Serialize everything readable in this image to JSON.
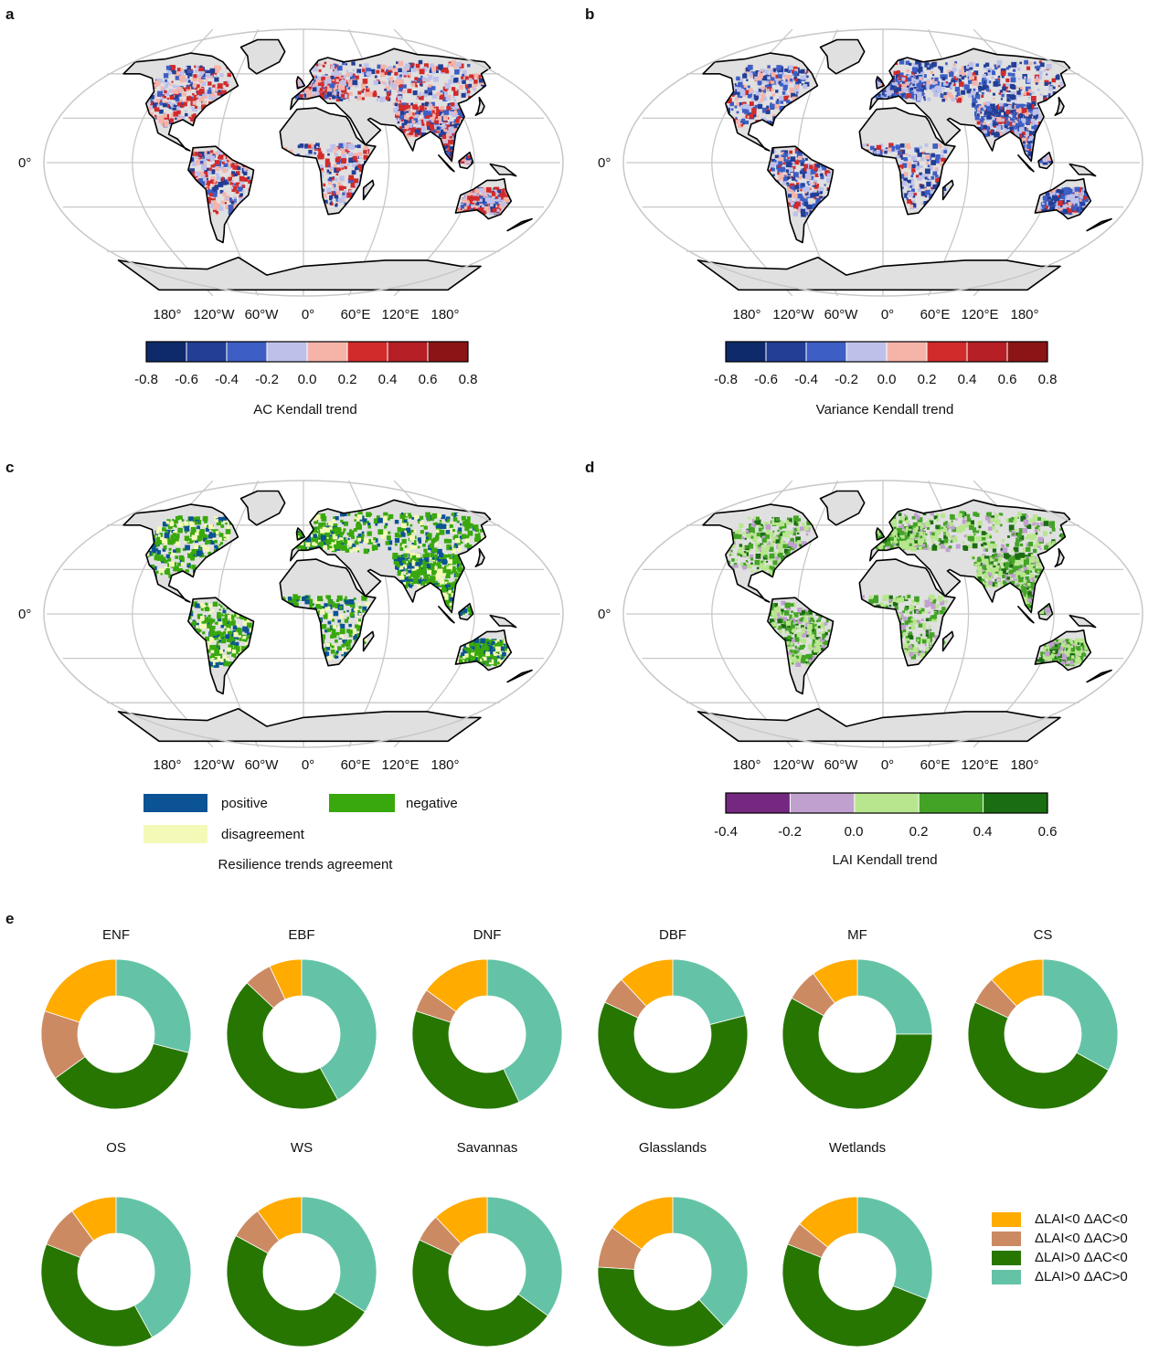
{
  "panels": {
    "a": {
      "letter": "a",
      "equator": "0°",
      "lon_labels": [
        "180°",
        "120°W",
        "60°W",
        "0°",
        "60°E",
        "120°E",
        "180°"
      ],
      "colorbar": {
        "ticks": [
          "-0.8",
          "-0.6",
          "-0.4",
          "-0.2",
          "0.0",
          "0.2",
          "0.4",
          "0.6",
          "0.8"
        ],
        "colors": [
          "#0e2a6b",
          "#223e95",
          "#3d5ec4",
          "#bdc1ea",
          "#f6b4a9",
          "#d12b2b",
          "#b51f25",
          "#8b1416"
        ],
        "title": "AC Kendall trend"
      }
    },
    "b": {
      "letter": "b",
      "equator": "0°",
      "lon_labels": [
        "180°",
        "120°W",
        "60°W",
        "0°",
        "60°E",
        "120°E",
        "180°"
      ],
      "colorbar": {
        "ticks": [
          "-0.8",
          "-0.6",
          "-0.4",
          "-0.2",
          "0.0",
          "0.2",
          "0.4",
          "0.6",
          "0.8"
        ],
        "colors": [
          "#0e2a6b",
          "#223e95",
          "#3d5ec4",
          "#bdc1ea",
          "#f6b4a9",
          "#d12b2b",
          "#b51f25",
          "#8b1416"
        ],
        "title": "Variance Kendall trend"
      }
    },
    "c": {
      "letter": "c",
      "equator": "0°",
      "lon_labels": [
        "180°",
        "120°W",
        "60°W",
        "0°",
        "60°E",
        "120°E",
        "180°"
      ],
      "legend": {
        "positive": {
          "label": "positive",
          "color": "#0b5394"
        },
        "negative": {
          "label": "negative",
          "color": "#38a80c"
        },
        "disagreement": {
          "label": "disagreement",
          "color": "#f4f9b7"
        },
        "title": "Resilience trends agreement"
      }
    },
    "d": {
      "letter": "d",
      "equator": "0°",
      "lon_labels": [
        "180°",
        "120°W",
        "60°W",
        "0°",
        "60°E",
        "120°E",
        "180°"
      ],
      "colorbar": {
        "ticks": [
          "-0.4",
          "-0.2",
          "0.0",
          "0.2",
          "0.4",
          "0.6"
        ],
        "colors": [
          "#74287f",
          "#c0a0cf",
          "#b8e68e",
          "#43a327",
          "#1b6d12"
        ],
        "title": "LAI Kendall trend"
      }
    }
  },
  "panel_e_letter": "e",
  "colors": {
    "land": "#e0e0e0",
    "grid": "#c8c8c8",
    "coast": "#000000"
  },
  "chart_data": {
    "type": "pie",
    "style": "donut",
    "categories": [
      "ΔLAI<0 ΔAC<0",
      "ΔLAI<0 ΔAC>0",
      "ΔLAI>0 ΔAC<0",
      "ΔLAI>0 ΔAC>0"
    ],
    "colors": [
      "#ffab00",
      "#cc8a63",
      "#277602",
      "#64c3a6"
    ],
    "series": [
      {
        "name": "ENF",
        "values": [
          0.2,
          0.15,
          0.36,
          0.29
        ]
      },
      {
        "name": "EBF",
        "values": [
          0.07,
          0.06,
          0.45,
          0.42
        ]
      },
      {
        "name": "DNF",
        "values": [
          0.15,
          0.05,
          0.37,
          0.43
        ]
      },
      {
        "name": "DBF",
        "values": [
          0.12,
          0.06,
          0.61,
          0.21
        ]
      },
      {
        "name": "MF",
        "values": [
          0.1,
          0.07,
          0.58,
          0.25
        ]
      },
      {
        "name": "CS",
        "values": [
          0.12,
          0.06,
          0.49,
          0.33
        ]
      },
      {
        "name": "OS",
        "values": [
          0.1,
          0.09,
          0.39,
          0.42
        ]
      },
      {
        "name": "WS",
        "values": [
          0.1,
          0.07,
          0.49,
          0.34
        ]
      },
      {
        "name": "Savannas",
        "values": [
          0.12,
          0.06,
          0.47,
          0.35
        ]
      },
      {
        "name": "Glasslands",
        "values": [
          0.15,
          0.09,
          0.38,
          0.38
        ]
      },
      {
        "name": "Wetlands",
        "values": [
          0.14,
          0.05,
          0.5,
          0.31
        ]
      }
    ]
  }
}
